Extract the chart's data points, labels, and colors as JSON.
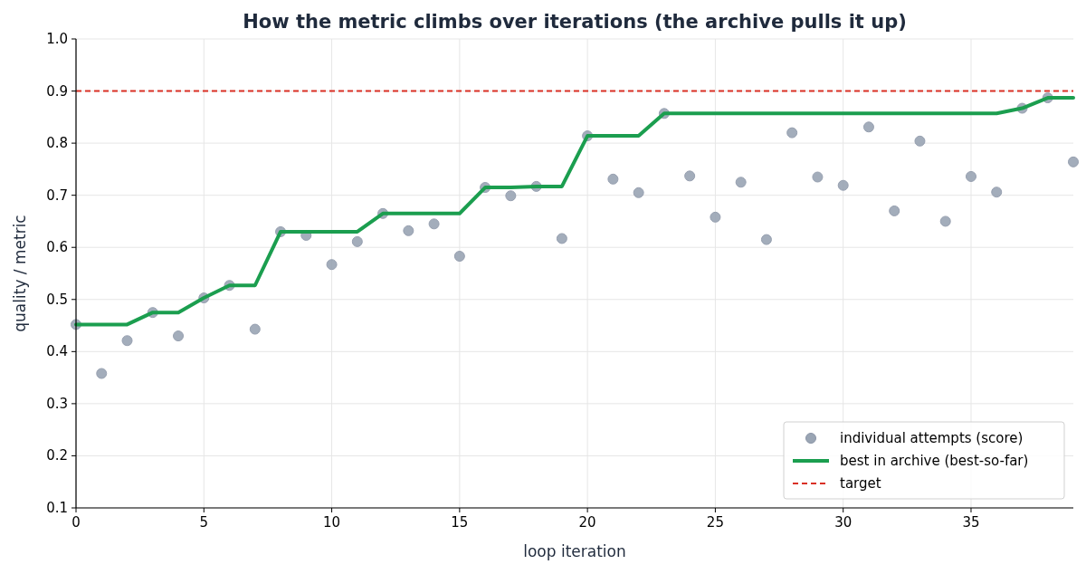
{
  "chart_data": {
    "type": "scatter",
    "title": "How the metric climbs over iterations (the archive pulls it up)",
    "xlabel": "loop iteration",
    "ylabel": "quality / metric",
    "x": [
      0,
      1,
      2,
      3,
      4,
      5,
      6,
      7,
      8,
      9,
      10,
      11,
      12,
      13,
      14,
      15,
      16,
      17,
      18,
      19,
      20,
      21,
      22,
      23,
      24,
      25,
      26,
      27,
      28,
      29,
      30,
      31,
      32,
      33,
      34,
      35,
      36,
      37,
      38,
      39
    ],
    "series": [
      {
        "name": "individual attempts (score)",
        "marker": "circle",
        "color": "#9aa5b4",
        "values": [
          0.452,
          0.358,
          0.421,
          0.475,
          0.43,
          0.503,
          0.527,
          0.443,
          0.63,
          0.623,
          0.567,
          0.611,
          0.665,
          0.632,
          0.645,
          0.583,
          0.715,
          0.699,
          0.717,
          0.617,
          0.814,
          0.731,
          0.705,
          0.857,
          0.737,
          0.658,
          0.725,
          0.615,
          0.82,
          0.735,
          0.719,
          0.831,
          0.67,
          0.804,
          0.65,
          0.736,
          0.706,
          0.867,
          0.887,
          0.764
        ]
      },
      {
        "name": "best in archive (best-so-far)",
        "type": "line",
        "color": "#1b9e4f",
        "values": [
          0.452,
          0.452,
          0.452,
          0.475,
          0.475,
          0.503,
          0.527,
          0.527,
          0.63,
          0.63,
          0.63,
          0.63,
          0.665,
          0.665,
          0.665,
          0.665,
          0.715,
          0.715,
          0.717,
          0.717,
          0.814,
          0.814,
          0.814,
          0.857,
          0.857,
          0.857,
          0.857,
          0.857,
          0.857,
          0.857,
          0.857,
          0.857,
          0.857,
          0.857,
          0.857,
          0.857,
          0.857,
          0.867,
          0.887,
          0.887
        ]
      }
    ],
    "ref_lines": [
      {
        "axis": "y",
        "value": 0.9,
        "label": "target",
        "color": "#d93025",
        "line_style": "dashed"
      }
    ],
    "xlim": [
      0,
      39
    ],
    "xticks": [
      0,
      5,
      10,
      15,
      20,
      25,
      30,
      35
    ],
    "ylim": [
      0.1,
      1.0
    ],
    "yticks": [
      {
        "value": 0.1,
        "label": "0.1"
      },
      {
        "value": 0.2,
        "label": "0.2"
      },
      {
        "value": 0.3,
        "label": "0.3"
      },
      {
        "value": 0.4,
        "label": "0.4"
      },
      {
        "value": 0.5,
        "label": "0.5"
      },
      {
        "value": 0.6,
        "label": "0.6"
      },
      {
        "value": 0.7,
        "label": "0.7"
      },
      {
        "value": 0.8,
        "label": "0.8"
      },
      {
        "value": 0.9,
        "label": "0.9"
      },
      {
        "value": 1.0,
        "label": "1.0"
      }
    ],
    "grid": true,
    "legend": "bottom right"
  }
}
